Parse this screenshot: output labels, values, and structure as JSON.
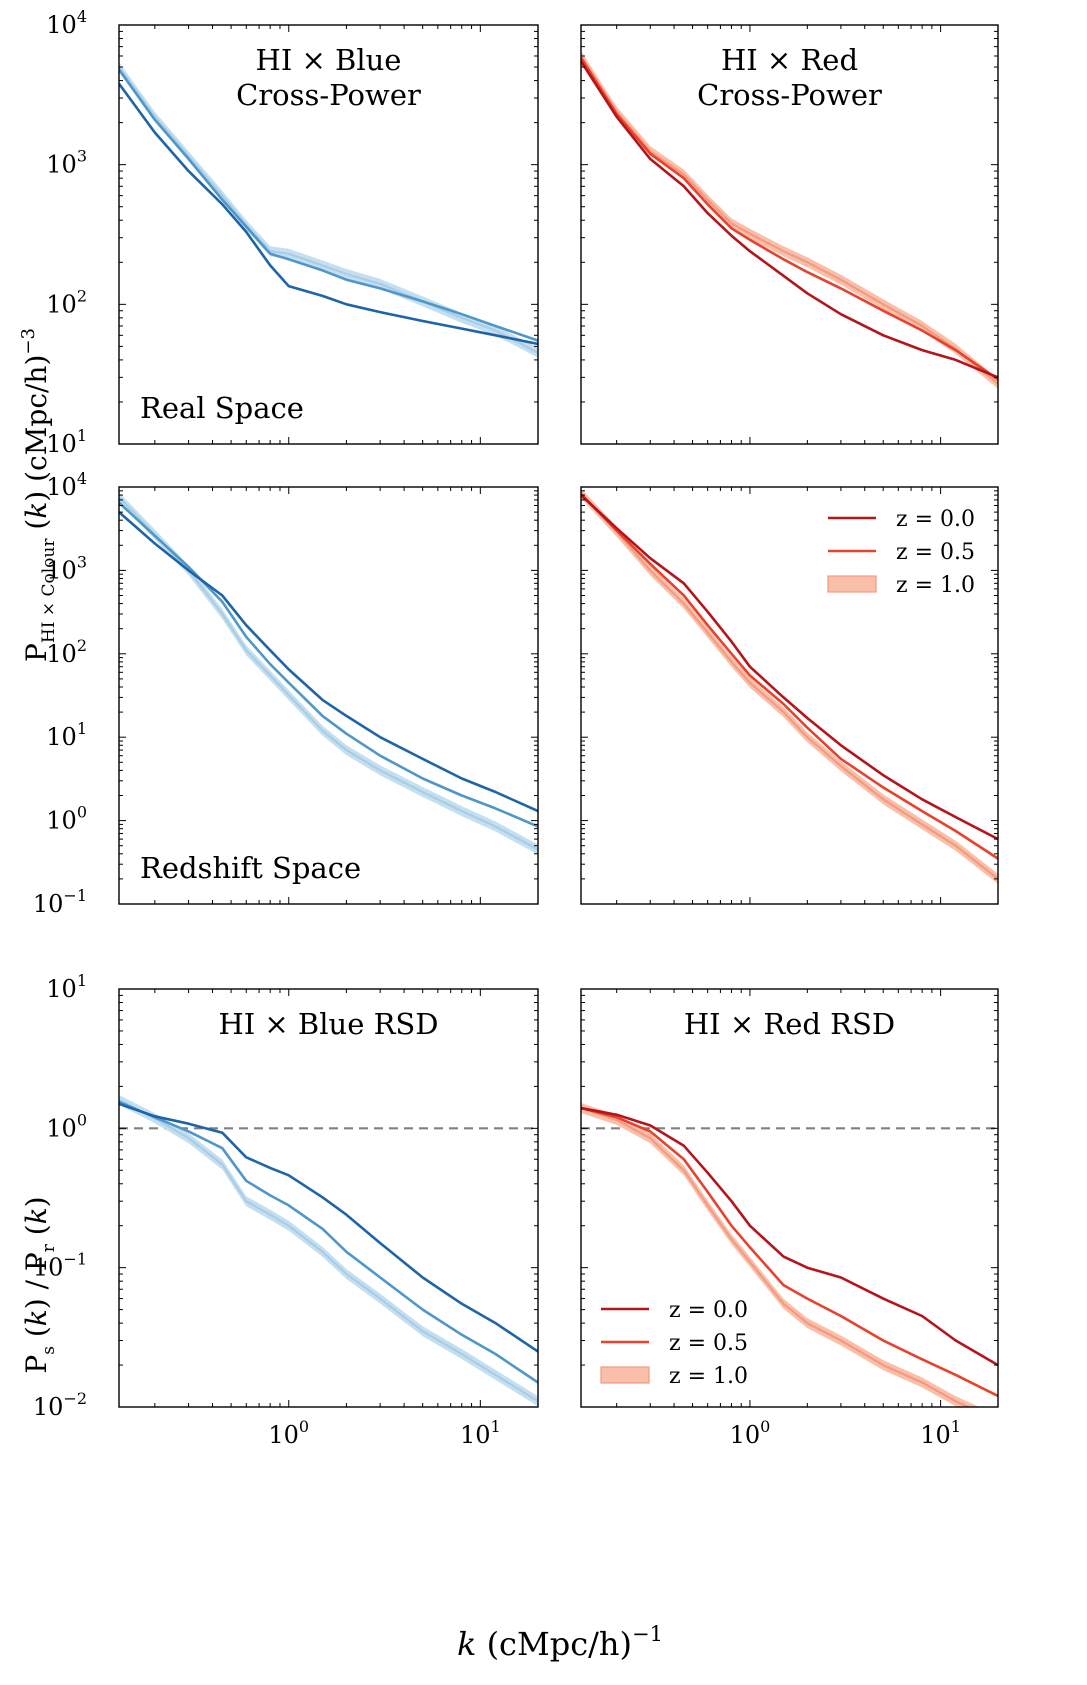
{
  "figure": {
    "xlabel_main": "k",
    "xlabel_rest": " (cMpc/h)",
    "xlabel_exp": "−1",
    "ylabel_top": "P_{HI × Colour} (k) (cMpc/h)^{−3}",
    "ylabel_bottom": "P_s (k) / P_r (k)"
  },
  "colors": {
    "blue": [
      "#1f63a8",
      "#4f97c9",
      "#a9cde6"
    ],
    "blue_fill": "#c4dff0",
    "red": [
      "#b5141b",
      "#e8412d",
      "#f59a80"
    ],
    "red_fill": "#f9bfa9",
    "reference_line": "#808080"
  },
  "legend": {
    "entries": [
      "z = 0.0",
      "z = 0.5",
      "z = 1.0"
    ]
  },
  "chart_data": [
    {
      "id": "p00",
      "type": "line",
      "theme": "blue",
      "title": "HI × Blue\nCross-Power",
      "annotation": "Real Space",
      "xscale": "log",
      "yscale": "log",
      "xlim": [
        0.13,
        20
      ],
      "ylim": [
        10,
        10000
      ],
      "x": [
        0.13,
        0.2,
        0.3,
        0.45,
        0.6,
        0.8,
        1.0,
        1.5,
        2,
        3,
        5,
        8,
        12,
        20
      ],
      "series": [
        {
          "name": "z = 0.0",
          "values": [
            3800,
            1700,
            900,
            520,
            330,
            190,
            135,
            115,
            100,
            88,
            76,
            67,
            60,
            52
          ]
        },
        {
          "name": "z = 0.5",
          "values": [
            4800,
            2100,
            1100,
            560,
            360,
            230,
            210,
            175,
            150,
            130,
            105,
            85,
            70,
            55
          ]
        },
        {
          "name": "z = 1.0",
          "band": true,
          "values": [
            5000,
            2200,
            1150,
            600,
            370,
            240,
            230,
            190,
            165,
            140,
            105,
            80,
            65,
            45
          ]
        }
      ]
    },
    {
      "id": "p01",
      "type": "line",
      "theme": "red",
      "title": "HI × Red\nCross-Power",
      "annotation": "",
      "xscale": "log",
      "yscale": "log",
      "xlim": [
        0.13,
        20
      ],
      "ylim": [
        10,
        10000
      ],
      "x": [
        0.13,
        0.2,
        0.3,
        0.45,
        0.6,
        0.8,
        1.0,
        1.5,
        2,
        3,
        5,
        8,
        12,
        20
      ],
      "series": [
        {
          "name": "z = 0.0",
          "values": [
            5500,
            2200,
            1100,
            700,
            450,
            310,
            240,
            160,
            120,
            85,
            60,
            47,
            40,
            30
          ]
        },
        {
          "name": "z = 0.5",
          "values": [
            5800,
            2300,
            1200,
            800,
            520,
            350,
            290,
            210,
            170,
            130,
            90,
            65,
            47,
            29
          ]
        },
        {
          "name": "z = 1.0",
          "band": true,
          "values": [
            6000,
            2400,
            1250,
            850,
            560,
            380,
            320,
            240,
            200,
            150,
            100,
            70,
            48,
            27
          ]
        }
      ]
    },
    {
      "id": "p10",
      "type": "line",
      "theme": "blue",
      "title": "",
      "annotation": "Redshift Space",
      "xscale": "log",
      "yscale": "log",
      "xlim": [
        0.13,
        20
      ],
      "ylim": [
        0.1,
        10000
      ],
      "x": [
        0.13,
        0.2,
        0.3,
        0.45,
        0.6,
        0.8,
        1.0,
        1.5,
        2,
        3,
        5,
        8,
        12,
        20
      ],
      "series": [
        {
          "name": "z = 0.0",
          "values": [
            5000,
            2100,
            1000,
            500,
            220,
            110,
            65,
            28,
            18,
            10,
            5.5,
            3.2,
            2.2,
            1.3
          ]
        },
        {
          "name": "z = 0.5",
          "values": [
            6500,
            2600,
            1100,
            420,
            160,
            75,
            45,
            18,
            11,
            6,
            3.2,
            2.0,
            1.4,
            0.85
          ]
        },
        {
          "name": "z = 1.0",
          "band": true,
          "values": [
            7500,
            2700,
            1000,
            300,
            110,
            55,
            32,
            12,
            7,
            4,
            2.2,
            1.3,
            0.85,
            0.45
          ]
        }
      ]
    },
    {
      "id": "p11",
      "type": "line",
      "theme": "red",
      "title": "",
      "annotation": "",
      "xscale": "log",
      "yscale": "log",
      "xlim": [
        0.13,
        20
      ],
      "ylim": [
        0.1,
        10000
      ],
      "x": [
        0.13,
        0.2,
        0.3,
        0.45,
        0.6,
        0.8,
        1.0,
        1.5,
        2,
        3,
        5,
        8,
        12,
        20
      ],
      "series": [
        {
          "name": "z = 0.0",
          "values": [
            8000,
            3200,
            1400,
            700,
            320,
            140,
            70,
            30,
            17,
            8,
            3.5,
            1.8,
            1.1,
            0.6
          ]
        },
        {
          "name": "z = 0.5",
          "values": [
            8200,
            3000,
            1200,
            500,
            220,
            100,
            55,
            25,
            13,
            5.5,
            2.5,
            1.3,
            0.75,
            0.35
          ]
        },
        {
          "name": "z = 1.0",
          "band": true,
          "values": [
            8400,
            2900,
            1000,
            400,
            180,
            80,
            45,
            20,
            10,
            4.5,
            1.8,
            0.9,
            0.5,
            0.2
          ]
        }
      ]
    },
    {
      "id": "p20",
      "type": "line",
      "theme": "blue",
      "title": "HI × Blue RSD",
      "annotation": "",
      "xscale": "log",
      "yscale": "log",
      "xlim": [
        0.13,
        20
      ],
      "ylim": [
        0.01,
        10
      ],
      "reference_y": 1.0,
      "x": [
        0.13,
        0.2,
        0.3,
        0.45,
        0.6,
        0.8,
        1.0,
        1.5,
        2,
        3,
        5,
        8,
        12,
        20
      ],
      "series": [
        {
          "name": "z = 0.0",
          "values": [
            1.5,
            1.22,
            1.08,
            0.93,
            0.62,
            0.52,
            0.46,
            0.32,
            0.24,
            0.15,
            0.085,
            0.055,
            0.04,
            0.025
          ]
        },
        {
          "name": "z = 0.5",
          "values": [
            1.55,
            1.2,
            0.95,
            0.72,
            0.42,
            0.33,
            0.28,
            0.19,
            0.13,
            0.085,
            0.05,
            0.033,
            0.024,
            0.015
          ]
        },
        {
          "name": "z = 1.0",
          "band": true,
          "values": [
            1.6,
            1.18,
            0.85,
            0.55,
            0.3,
            0.24,
            0.2,
            0.13,
            0.09,
            0.06,
            0.035,
            0.024,
            0.017,
            0.011
          ]
        }
      ]
    },
    {
      "id": "p21",
      "type": "line",
      "theme": "red",
      "title": "HI × Red RSD",
      "annotation": "",
      "xscale": "log",
      "yscale": "log",
      "xlim": [
        0.13,
        20
      ],
      "ylim": [
        0.01,
        10
      ],
      "reference_y": 1.0,
      "legend_position": "lower-left",
      "x": [
        0.13,
        0.2,
        0.3,
        0.45,
        0.6,
        0.8,
        1.0,
        1.5,
        2,
        3,
        5,
        8,
        12,
        20
      ],
      "series": [
        {
          "name": "z = 0.0",
          "values": [
            1.4,
            1.25,
            1.05,
            0.75,
            0.48,
            0.3,
            0.2,
            0.12,
            0.1,
            0.085,
            0.06,
            0.045,
            0.03,
            0.02
          ]
        },
        {
          "name": "z = 0.5",
          "values": [
            1.4,
            1.2,
            0.95,
            0.6,
            0.35,
            0.2,
            0.14,
            0.075,
            0.06,
            0.045,
            0.03,
            0.022,
            0.017,
            0.012
          ]
        },
        {
          "name": "z = 1.0",
          "band": true,
          "values": [
            1.4,
            1.15,
            0.85,
            0.5,
            0.28,
            0.16,
            0.11,
            0.055,
            0.04,
            0.03,
            0.02,
            0.015,
            0.011,
            0.008
          ]
        }
      ]
    }
  ]
}
